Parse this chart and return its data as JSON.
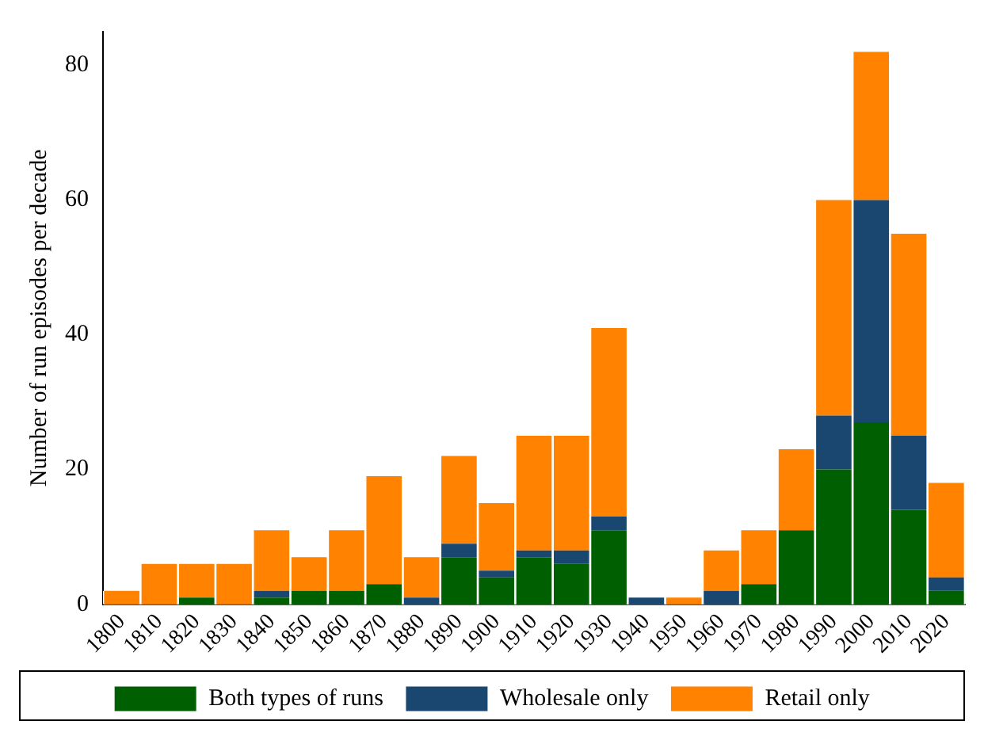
{
  "chart_data": {
    "type": "bar",
    "stacked": true,
    "ylabel": "Number of run episodes per decade",
    "categories": [
      "1800",
      "1810",
      "1820",
      "1830",
      "1840",
      "1850",
      "1860",
      "1870",
      "1880",
      "1890",
      "1900",
      "1910",
      "1920",
      "1930",
      "1940",
      "1950",
      "1960",
      "1970",
      "1980",
      "1990",
      "2000",
      "2010",
      "2020"
    ],
    "series": [
      {
        "name": "Both types of runs",
        "color": "#005f00",
        "values": [
          0,
          0,
          1,
          0,
          1,
          2,
          2,
          3,
          0,
          7,
          4,
          7,
          6,
          11,
          0,
          0,
          0,
          3,
          11,
          20,
          27,
          14,
          2
        ]
      },
      {
        "name": "Wholesale only",
        "color": "#1a476f",
        "values": [
          0,
          0,
          0,
          0,
          1,
          0,
          0,
          0,
          1,
          2,
          1,
          1,
          2,
          2,
          1,
          0,
          2,
          0,
          0,
          8,
          33,
          11,
          2
        ]
      },
      {
        "name": "Retail only",
        "color": "#ff8200",
        "values": [
          2,
          6,
          5,
          6,
          9,
          5,
          9,
          16,
          6,
          13,
          10,
          17,
          17,
          28,
          0,
          1,
          6,
          8,
          12,
          32,
          22,
          30,
          14
        ]
      }
    ],
    "ylim": [
      0,
      85
    ],
    "yticks": [
      0,
      20,
      40,
      60,
      80
    ],
    "grid": false,
    "legend": "bottom"
  }
}
